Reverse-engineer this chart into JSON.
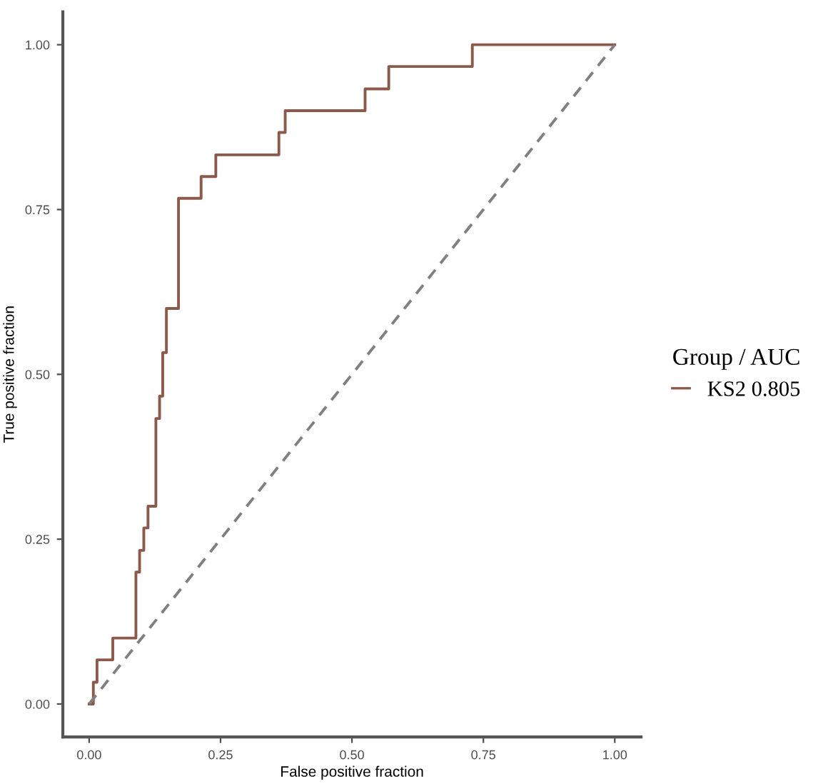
{
  "chart_data": {
    "type": "step",
    "xlabel": "False positive fraction",
    "ylabel": "True positive fraction",
    "legend_title": "Group / AUC",
    "legend": "right",
    "grid": false,
    "xlim": [
      -0.05,
      1.05
    ],
    "ylim": [
      -0.05,
      1.05
    ],
    "xticks": [
      {
        "value": 0,
        "label": "0.00"
      },
      {
        "value": 0.25,
        "label": "0.25"
      },
      {
        "value": 0.5,
        "label": "0.50"
      },
      {
        "value": 0.75,
        "label": "0.75"
      },
      {
        "value": 1,
        "label": "1.00"
      }
    ],
    "yticks": [
      {
        "value": 0,
        "label": "0.00"
      },
      {
        "value": 0.25,
        "label": "0.25"
      },
      {
        "value": 0.5,
        "label": "0.50"
      },
      {
        "value": 0.75,
        "label": "0.75"
      },
      {
        "value": 1,
        "label": "1.00"
      }
    ],
    "series": [
      {
        "name": "KS2 0.805",
        "color": "#8b5a4a",
        "line_style": "solid",
        "x": [
          0,
          0.008,
          0.015,
          0.045,
          0.089,
          0.096,
          0.104,
          0.112,
          0.127,
          0.134,
          0.14,
          0.147,
          0.17,
          0.213,
          0.241,
          0.361,
          0.373,
          0.525,
          0.57,
          0.729,
          1.0
        ],
        "values": [
          0,
          0.033,
          0.067,
          0.1,
          0.2,
          0.233,
          0.267,
          0.3,
          0.433,
          0.467,
          0.533,
          0.6,
          0.767,
          0.8,
          0.833,
          0.867,
          0.9,
          0.933,
          0.967,
          1.0,
          1.0
        ]
      },
      {
        "type": "line",
        "color": "#808080",
        "line_style": "dashed",
        "x": [
          0,
          1
        ],
        "values": [
          0,
          1
        ]
      }
    ]
  }
}
